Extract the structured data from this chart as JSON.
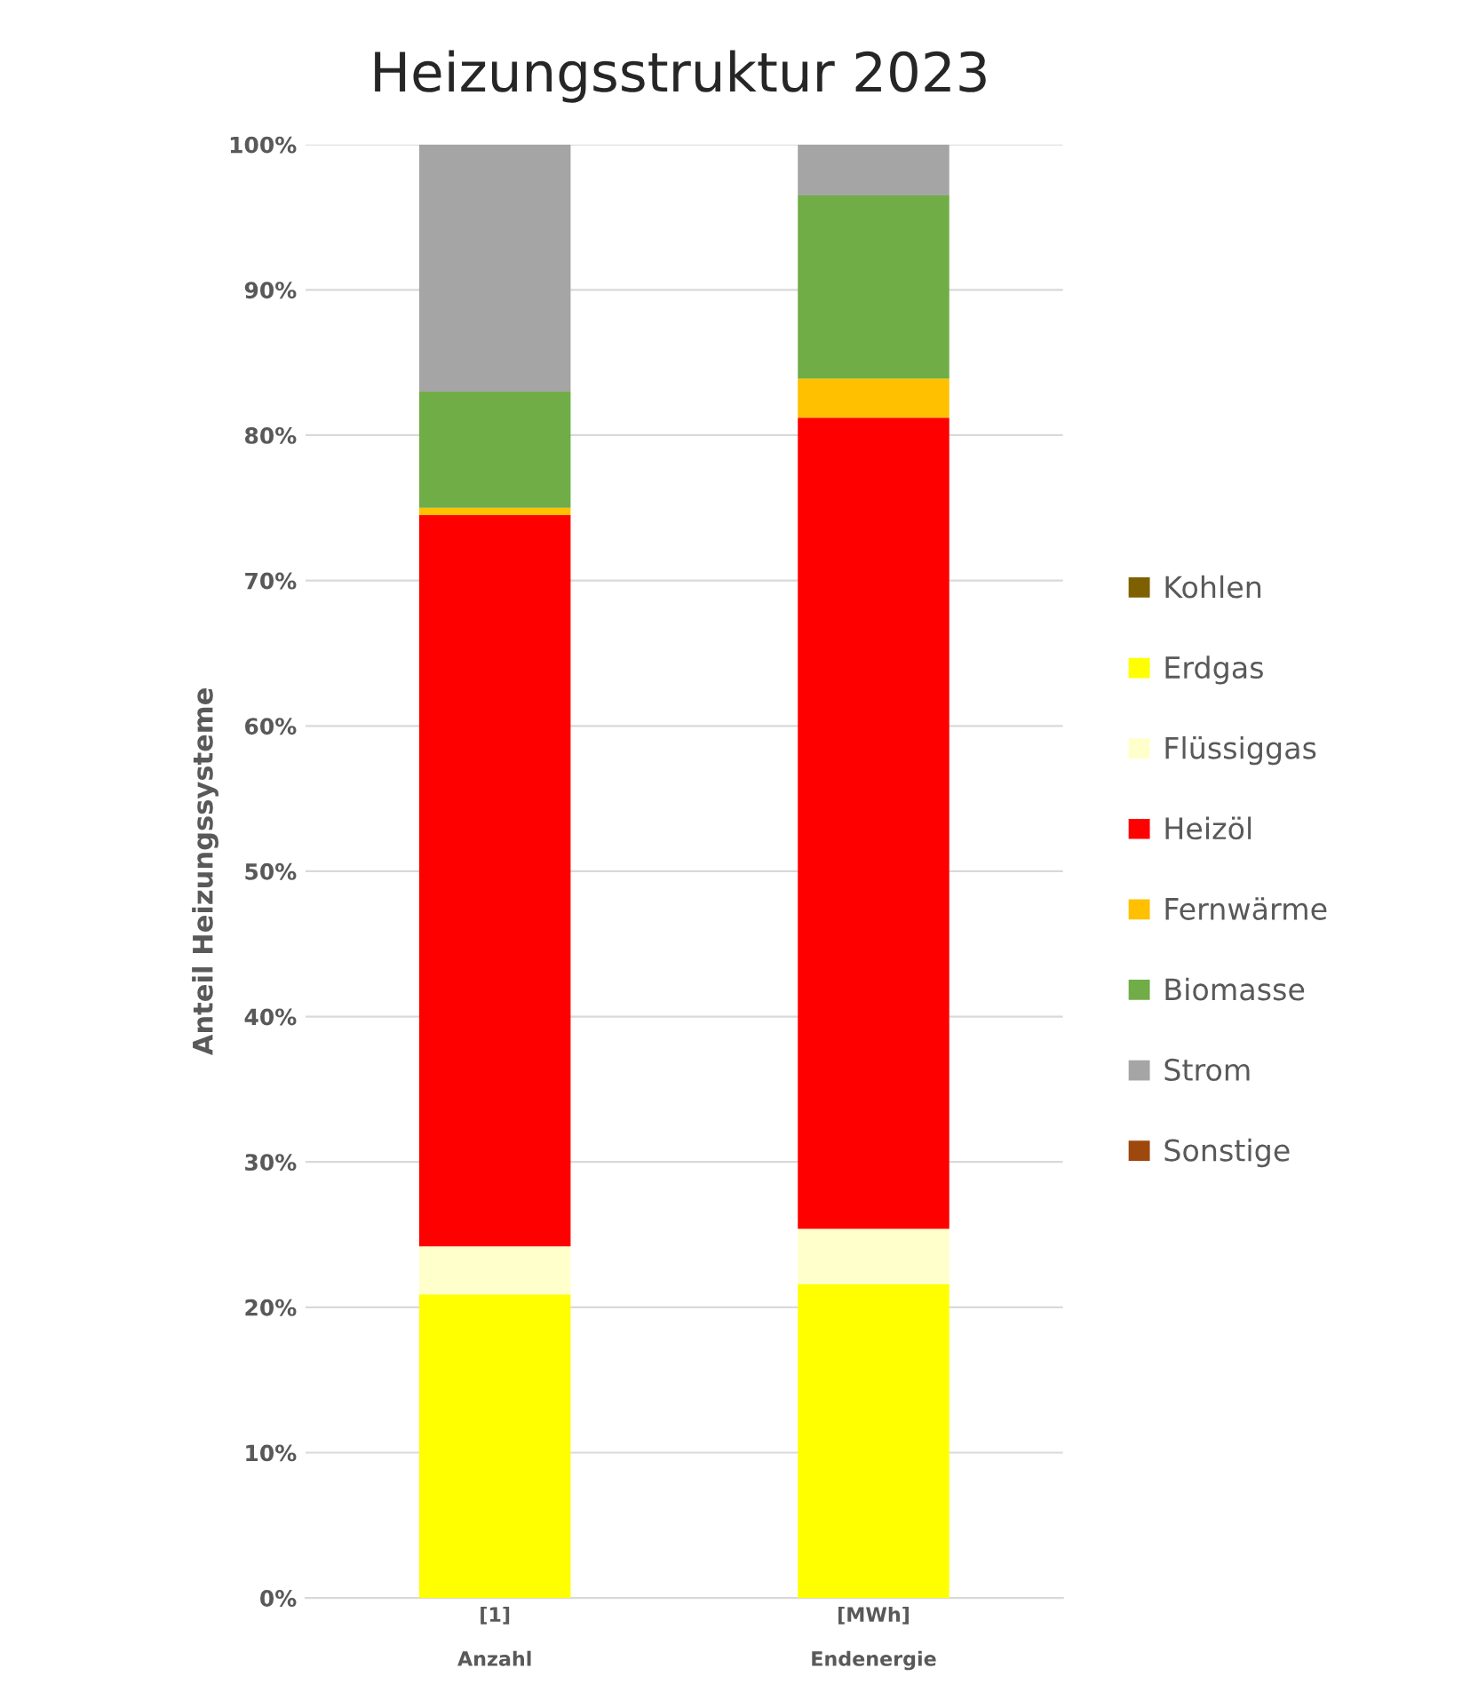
{
  "chart_data": {
    "type": "bar",
    "title": "Heizungsstruktur 2023",
    "ylabel": "Anteil Heizungssysteme",
    "categories": [
      "[1]\n\nAnzahl",
      "[MWh]\n\nEndenergie"
    ],
    "stacked": true,
    "series": [
      {
        "name": "Kohlen",
        "color": "#7f6000",
        "values": [
          null,
          null
        ]
      },
      {
        "name": "Erdgas",
        "color": "#ffff00",
        "values": [
          20.9,
          21.6
        ]
      },
      {
        "name": "Flüssiggas",
        "color": "#ffffcc",
        "values": [
          3.3,
          3.8
        ]
      },
      {
        "name": "Heizöl",
        "color": "#ff0000",
        "values": [
          50.3,
          55.8
        ]
      },
      {
        "name": "Fernwärme",
        "color": "#ffc000",
        "values": [
          0.5,
          2.7
        ]
      },
      {
        "name": "Biomasse",
        "color": "#70ad47",
        "values": [
          8.0,
          12.6
        ]
      },
      {
        "name": "Strom",
        "color": "#a5a5a5",
        "values": [
          17.0,
          3.5
        ]
      },
      {
        "name": "Sonstige",
        "color": "#9e480e",
        "values": [
          null,
          null
        ]
      }
    ],
    "ylim": [
      0,
      100
    ],
    "yticks": [
      {
        "value": 0,
        "label": "0%"
      },
      {
        "value": 10,
        "label": "10%"
      },
      {
        "value": 20,
        "label": "20%"
      },
      {
        "value": 30,
        "label": "30%"
      },
      {
        "value": 40,
        "label": "40%"
      },
      {
        "value": 50,
        "label": "50%"
      },
      {
        "value": 60,
        "label": "60%"
      },
      {
        "value": 70,
        "label": "70%"
      },
      {
        "value": 80,
        "label": "80%"
      },
      {
        "value": 90,
        "label": "90%"
      },
      {
        "value": 100,
        "label": "100%"
      }
    ],
    "grid": "y",
    "legend": "right"
  }
}
